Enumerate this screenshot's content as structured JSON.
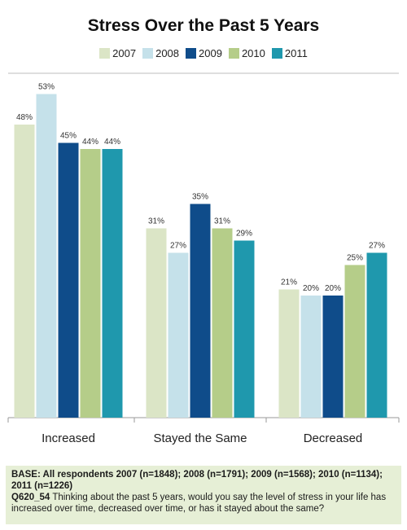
{
  "chart_data": {
    "type": "bar",
    "title": "Stress Over the Past 5 Years",
    "xlabel": "",
    "ylabel": "",
    "ylim": [
      0,
      60
    ],
    "grid": false,
    "legend_position": "top-center",
    "categories": [
      "Increased",
      "Stayed the Same",
      "Decreased"
    ],
    "series": [
      {
        "name": "2007",
        "color": "#dbe5c6",
        "values": [
          48,
          31,
          21
        ],
        "labels": [
          "48%",
          "31%",
          "21%"
        ]
      },
      {
        "name": "2008",
        "color": "#c5e1ea",
        "values": [
          53,
          27,
          20
        ],
        "labels": [
          "53%",
          "27%",
          "20%"
        ]
      },
      {
        "name": "2009",
        "color": "#0f4c8a",
        "values": [
          45,
          35,
          20
        ],
        "labels": [
          "45%",
          "35%",
          "20%"
        ]
      },
      {
        "name": "2010",
        "color": "#b5cd89",
        "values": [
          44,
          31,
          25
        ],
        "labels": [
          "44%",
          "31%",
          "25%"
        ]
      },
      {
        "name": "2011",
        "color": "#1f98ad",
        "values": [
          44,
          29,
          27
        ],
        "labels": [
          "44%",
          "29%",
          "27%"
        ]
      }
    ]
  },
  "footnote": {
    "base": "BASE: All respondents 2007 (n=1848); 2008 (n=1791); 2009 (n=1568); 2010 (n=1134); 2011 (n=1226)",
    "question_id": "Q620_54",
    "question_text": "Thinking about the past 5 years, would you say the level of stress in your life has increased over time, decreased over time, or has it stayed about the same?"
  }
}
